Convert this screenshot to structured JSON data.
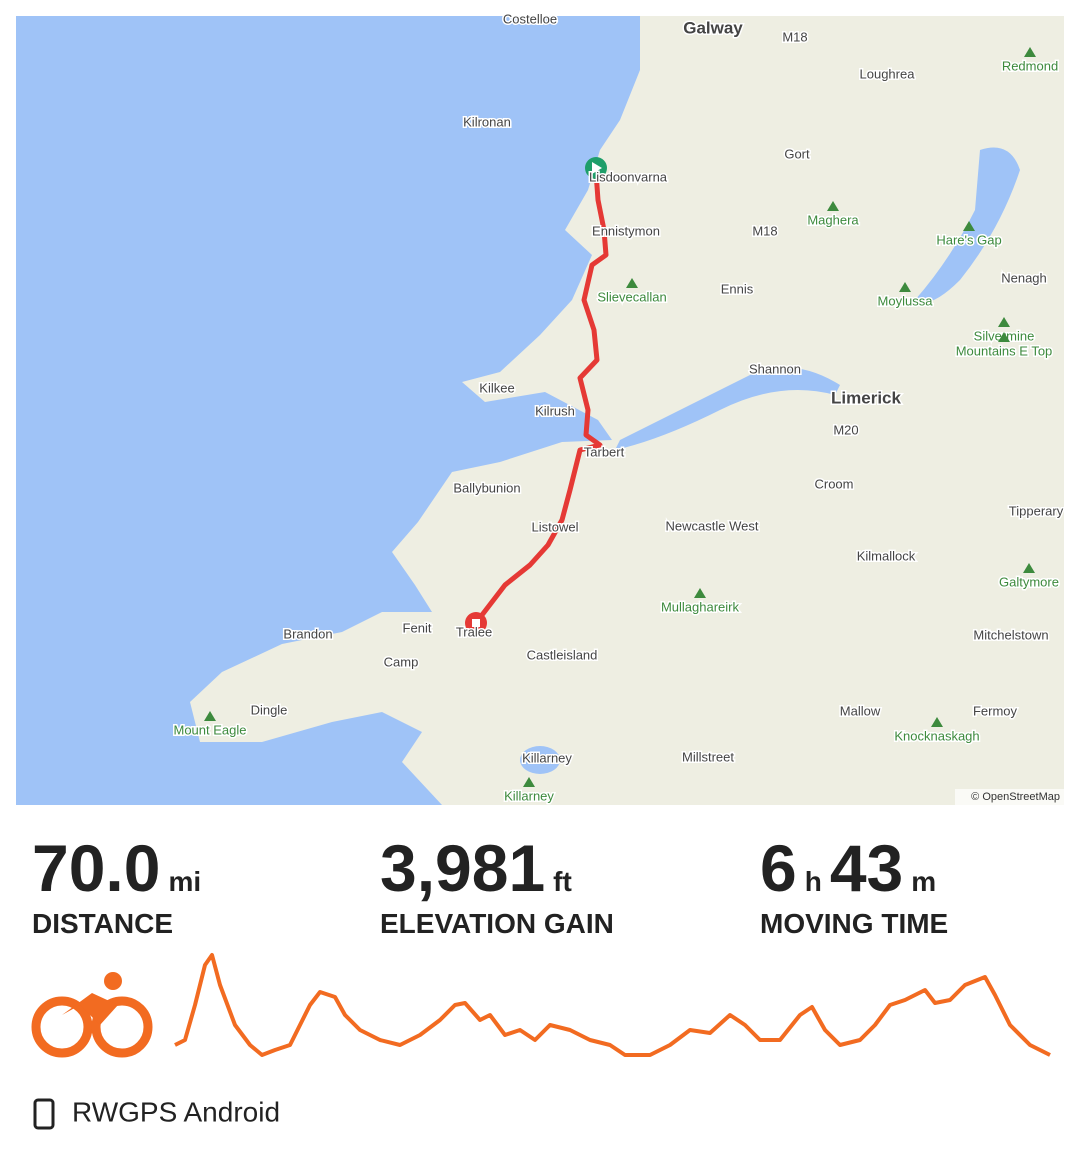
{
  "map": {
    "labels": [
      "Costelloe",
      "Galway",
      "M18",
      "Loughrea",
      "Redmond",
      "Kilronan",
      "Lisdoonvarna",
      "Gort",
      "Ennistymon",
      "M18",
      "Maghera",
      "Hare's Gap",
      "Ennis",
      "Slievecallan",
      "Nenagh",
      "Moylussa",
      "Silvermine",
      "Mountains E Top",
      "Shannon",
      "Limerick",
      "Kilkee",
      "Kilrush",
      "M20",
      "Tarbert",
      "Ballybunion",
      "Croom",
      "Tipperary",
      "Listowel",
      "Newcastle West",
      "Kilmallock",
      "Galtymore",
      "Mullaghareirk",
      "Brandon",
      "Fenit",
      "Tralee",
      "Mitchelstown",
      "Camp",
      "Castleisland",
      "Dingle",
      "Mallow",
      "Fermoy",
      "Mount Eagle",
      "Knocknaskagh",
      "Killarney",
      "Millstreet",
      "Killarney"
    ],
    "attribution": "© OpenStreetMap"
  },
  "stats": [
    {
      "value": "70.0",
      "unit": "mi",
      "label": "DISTANCE"
    },
    {
      "value": "3,981",
      "unit": "ft",
      "label": "ELEVATION GAIN"
    },
    {
      "value": "6",
      "unit": "h",
      "value2": "43",
      "unit2": "m",
      "label": "MOVING TIME"
    }
  ],
  "source": "RWGPS Android"
}
